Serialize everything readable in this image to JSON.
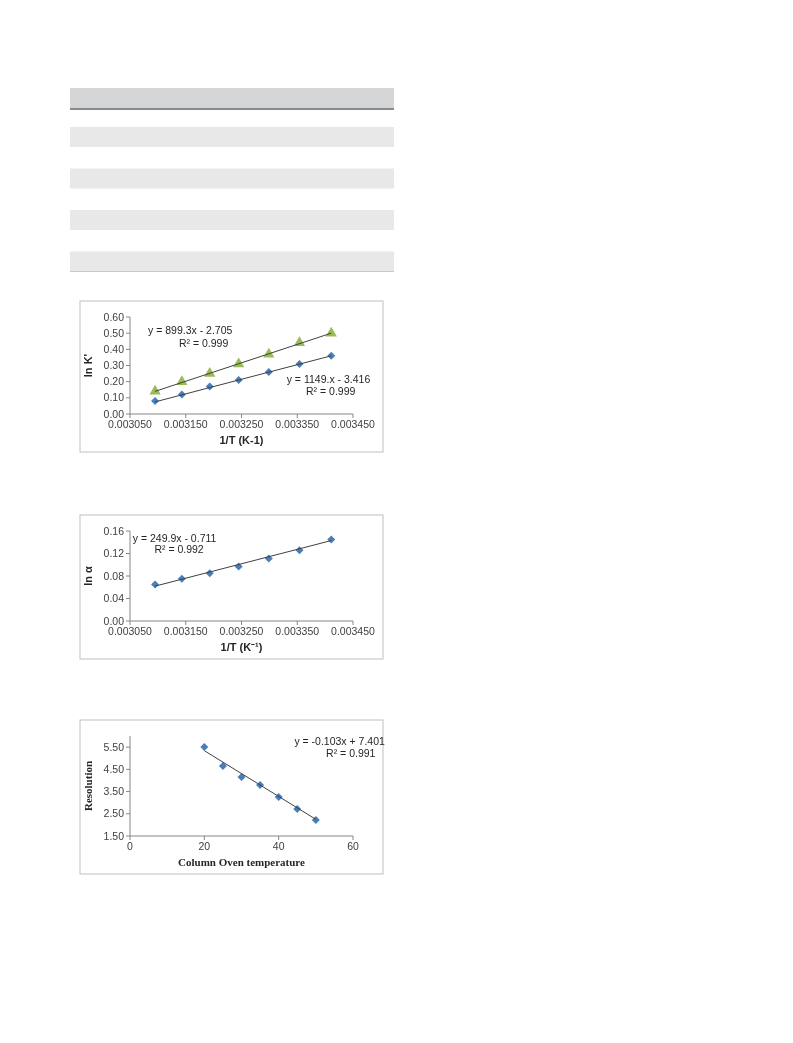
{
  "chart_data": [
    {
      "type": "scatter",
      "xlabel": "1/T (K-1)",
      "ylabel": "ln K'",
      "xlim": [
        0.00305,
        0.00345
      ],
      "xticks": [
        {
          "value": 0.00305,
          "label": "0.003050"
        },
        {
          "value": 0.00315,
          "label": "0.003150"
        },
        {
          "value": 0.00325,
          "label": "0.003250"
        },
        {
          "value": 0.00335,
          "label": "0.003350"
        },
        {
          "value": 0.00345,
          "label": "0.003450"
        }
      ],
      "ylim": [
        0,
        0.6
      ],
      "yticks": [
        {
          "value": 0,
          "label": "0.00"
        },
        {
          "value": 0.1,
          "label": "0.10"
        },
        {
          "value": 0.2,
          "label": "0.20"
        },
        {
          "value": 0.3,
          "label": "0.30"
        },
        {
          "value": 0.4,
          "label": "0.40"
        },
        {
          "value": 0.5,
          "label": "0.50"
        },
        {
          "value": 0.6,
          "label": "0.60"
        }
      ],
      "x": [
        0.003095,
        0.003143,
        0.003193,
        0.003245,
        0.003299,
        0.003354,
        0.003411
      ],
      "series": [
        {
          "marker": "triangle",
          "color": "#9bbb59",
          "values": [
            0.14,
            0.2,
            0.25,
            0.31,
            0.37,
            0.44,
            0.5
          ]
        },
        {
          "marker": "diamond",
          "color": "#4a7ebb",
          "values": [
            0.08,
            0.12,
            0.17,
            0.21,
            0.26,
            0.31,
            0.36
          ]
        },
        {
          "type": "line",
          "color": "#404040",
          "x": [
            0.003095,
            0.003411
          ],
          "values": [
            0.14,
            0.5
          ]
        },
        {
          "type": "line",
          "color": "#404040",
          "x": [
            0.003095,
            0.003411
          ],
          "values": [
            0.075,
            0.36
          ]
        }
      ],
      "annotations": [
        "y = 899.3x - 2.705",
        "R² = 0.999",
        "y = 1149.x - 3.416",
        "R² = 0.999"
      ]
    },
    {
      "type": "scatter",
      "xlabel": "1/T (K⁻¹)",
      "ylabel": "ln α",
      "xlim": [
        0.00305,
        0.00345
      ],
      "xticks": [
        {
          "value": 0.00305,
          "label": "0.003050"
        },
        {
          "value": 0.00315,
          "label": "0.003150"
        },
        {
          "value": 0.00325,
          "label": "0.003250"
        },
        {
          "value": 0.00335,
          "label": "0.003350"
        },
        {
          "value": 0.00345,
          "label": "0.003450"
        }
      ],
      "ylim": [
        0,
        0.16
      ],
      "yticks": [
        {
          "value": 0,
          "label": "0.00"
        },
        {
          "value": 0.04,
          "label": "0.04"
        },
        {
          "value": 0.08,
          "label": "0.08"
        },
        {
          "value": 0.12,
          "label": "0.12"
        },
        {
          "value": 0.16,
          "label": "0.16"
        }
      ],
      "x": [
        0.003095,
        0.003143,
        0.003193,
        0.003245,
        0.003299,
        0.003354,
        0.003411
      ],
      "series": [
        {
          "marker": "diamond",
          "color": "#4a7ebb",
          "values": [
            0.065,
            0.075,
            0.085,
            0.097,
            0.111,
            0.126,
            0.145
          ]
        },
        {
          "type": "line",
          "color": "#404040",
          "x": [
            0.003095,
            0.003411
          ],
          "values": [
            0.062,
            0.143
          ]
        }
      ],
      "annotations": [
        "y = 249.9x - 0.711",
        "R² = 0.992"
      ]
    },
    {
      "type": "scatter",
      "xlabel": "Column Oven temperature",
      "ylabel": "Resolution",
      "xlim": [
        0,
        60
      ],
      "xticks": [
        0,
        20,
        40,
        60
      ],
      "ylim": [
        1.5,
        6
      ],
      "yticks": [
        {
          "value": 1.5,
          "label": "1.50"
        },
        {
          "value": 2.5,
          "label": "2.50"
        },
        {
          "value": 3.5,
          "label": "3.50"
        },
        {
          "value": 4.5,
          "label": "4.50"
        },
        {
          "value": 5.5,
          "label": "5.50"
        }
      ],
      "x": [
        20,
        25,
        30,
        35,
        40,
        45,
        50
      ],
      "series": [
        {
          "marker": "diamond",
          "color": "#4a7ebb",
          "values": [
            5.5,
            4.65,
            4.15,
            3.8,
            3.25,
            2.72,
            2.22
          ]
        },
        {
          "type": "line",
          "color": "#404040",
          "x": [
            20,
            50
          ],
          "values": [
            5.34,
            2.25
          ]
        }
      ],
      "annotations": [
        "y = -0.103x + 7.401",
        "R² = 0.991"
      ]
    }
  ]
}
